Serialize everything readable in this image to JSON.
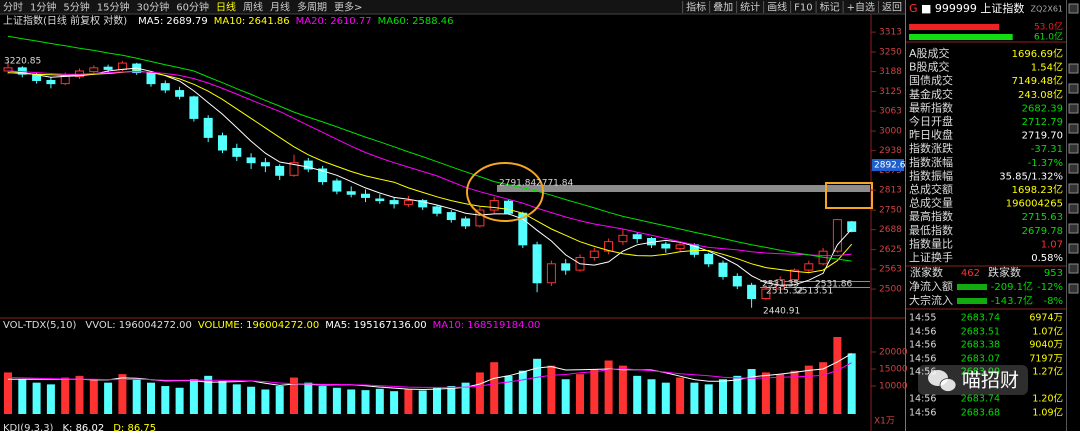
{
  "toolbar": {
    "left": [
      {
        "label": "分时"
      },
      {
        "label": "1分钟"
      },
      {
        "label": "5分钟"
      },
      {
        "label": "15分钟"
      },
      {
        "label": "30分钟"
      },
      {
        "label": "60分钟"
      },
      {
        "label": "日线",
        "selected": true
      },
      {
        "label": "周线"
      },
      {
        "label": "月线"
      },
      {
        "label": "多周期"
      },
      {
        "label": "更多>"
      }
    ],
    "right": [
      "指标",
      "叠加",
      "统计",
      "画线",
      "F10",
      "标记",
      "+自选",
      "返回"
    ]
  },
  "chart_data": [
    {
      "type": "candlestick",
      "title": "上证指数(日线 前复权 对数)",
      "legend": [
        {
          "label": "MA5:",
          "value": "2689.79",
          "color": "#ffffff"
        },
        {
          "label": "MA10:",
          "value": "2641.86",
          "color": "#ffff00"
        },
        {
          "label": "MA20:",
          "value": "2610.77",
          "color": "#ff00ff"
        },
        {
          "label": "MA60:",
          "value": "2588.46",
          "color": "#00e000"
        }
      ],
      "up_color": "#ff3232",
      "down_color": "#54ffff",
      "candles": [
        [
          3190,
          3220.85,
          3180,
          3200
        ],
        [
          3200,
          3205,
          3170,
          3180
        ],
        [
          3178,
          3185,
          3150,
          3160
        ],
        [
          3160,
          3170,
          3135,
          3150
        ],
        [
          3150,
          3185,
          3145,
          3175
        ],
        [
          3172,
          3198,
          3165,
          3190
        ],
        [
          3188,
          3208,
          3180,
          3200
        ],
        [
          3202,
          3210,
          3185,
          3195
        ],
        [
          3195,
          3222,
          3190,
          3215
        ],
        [
          3212,
          3216,
          3178,
          3185
        ],
        [
          3185,
          3190,
          3140,
          3150
        ],
        [
          3150,
          3160,
          3120,
          3130
        ],
        [
          3128,
          3140,
          3100,
          3110
        ],
        [
          3108,
          3112,
          3030,
          3040
        ],
        [
          3040,
          3050,
          2965,
          2980
        ],
        [
          2985,
          2995,
          2930,
          2940
        ],
        [
          2945,
          2960,
          2905,
          2920
        ],
        [
          2915,
          2930,
          2880,
          2900
        ],
        [
          2900,
          2915,
          2870,
          2890
        ],
        [
          2888,
          2895,
          2845,
          2860
        ],
        [
          2860,
          2925,
          2855,
          2900
        ],
        [
          2905,
          2915,
          2870,
          2880
        ],
        [
          2880,
          2890,
          2830,
          2840
        ],
        [
          2842,
          2850,
          2800,
          2810
        ],
        [
          2808,
          2825,
          2790,
          2800
        ],
        [
          2800,
          2815,
          2775,
          2790
        ],
        [
          2785,
          2800,
          2770,
          2780
        ],
        [
          2780,
          2790,
          2755,
          2770
        ],
        [
          2768,
          2795,
          2760,
          2780
        ],
        [
          2780,
          2785,
          2750,
          2760
        ],
        [
          2760,
          2765,
          2730,
          2740
        ],
        [
          2742,
          2750,
          2710,
          2720
        ],
        [
          2722,
          2730,
          2690,
          2700
        ],
        [
          2700,
          2760,
          2695,
          2750
        ],
        [
          2750,
          2791.84,
          2740,
          2780
        ],
        [
          2778,
          2785,
          2735,
          2740
        ],
        [
          2740,
          2745,
          2630,
          2640
        ],
        [
          2640,
          2650,
          2490,
          2520
        ],
        [
          2520,
          2590,
          2510,
          2580
        ],
        [
          2580,
          2595,
          2545,
          2560
        ],
        [
          2560,
          2610,
          2555,
          2600
        ],
        [
          2600,
          2630,
          2590,
          2620
        ],
        [
          2620,
          2660,
          2610,
          2650
        ],
        [
          2650,
          2690,
          2640,
          2670
        ],
        [
          2672,
          2680,
          2645,
          2660
        ],
        [
          2660,
          2665,
          2630,
          2640
        ],
        [
          2642,
          2650,
          2615,
          2630
        ],
        [
          2628,
          2650,
          2620,
          2640
        ],
        [
          2640,
          2645,
          2600,
          2610
        ],
        [
          2610,
          2615,
          2570,
          2580
        ],
        [
          2582,
          2590,
          2530,
          2540
        ],
        [
          2540,
          2550,
          2500,
          2510
        ],
        [
          2512,
          2520,
          2440.91,
          2470
        ],
        [
          2470,
          2510,
          2465,
          2500
        ],
        [
          2500,
          2540,
          2495,
          2530
        ],
        [
          2530,
          2565,
          2525,
          2560
        ],
        [
          2560,
          2590,
          2550,
          2580
        ],
        [
          2580,
          2630,
          2575,
          2620
        ],
        [
          2620,
          2722,
          2615,
          2719.7
        ],
        [
          2712.79,
          2715.63,
          2679.78,
          2682.39
        ]
      ],
      "series": [
        {
          "color": "#ffffff",
          "values": [
            3190,
            3185,
            3178,
            3170,
            3173,
            3175,
            3180,
            3190,
            3195,
            3199,
            3189,
            3175,
            3158,
            3127,
            3090,
            3053,
            3011,
            2968,
            2930,
            2902,
            2894,
            2886,
            2874,
            2860,
            2840,
            2820,
            2804,
            2790,
            2784,
            2776,
            2766,
            2754,
            2740,
            2734,
            2738,
            2738,
            2722,
            2686,
            2652,
            2608,
            2580,
            2576,
            2586,
            2620,
            2640,
            2648,
            2654,
            2648,
            2636,
            2620,
            2600,
            2576,
            2542,
            2520,
            2512,
            2514,
            2528,
            2550,
            2640,
            2689.79
          ]
        },
        {
          "color": "#ffff00",
          "values": [
            3185,
            3182,
            3180,
            3178,
            3176,
            3178,
            3180,
            3182,
            3186,
            3190,
            3185,
            3176,
            3165,
            3148,
            3126,
            3100,
            3070,
            3040,
            3010,
            2980,
            2950,
            2925,
            2905,
            2888,
            2872,
            2858,
            2848,
            2838,
            2820,
            2806,
            2792,
            2780,
            2770,
            2762,
            2758,
            2752,
            2740,
            2715,
            2690,
            2670,
            2650,
            2635,
            2622,
            2612,
            2606,
            2605,
            2610,
            2618,
            2622,
            2622,
            2610,
            2596,
            2580,
            2568,
            2562,
            2556,
            2552,
            2560,
            2590,
            2641.86
          ]
        },
        {
          "color": "#ff00ff",
          "values": [
            3190,
            3188,
            3185,
            3182,
            3180,
            3180,
            3182,
            3185,
            3187,
            3188,
            3186,
            3182,
            3176,
            3166,
            3152,
            3135,
            3117,
            3098,
            3080,
            3062,
            3040,
            3018,
            2996,
            2974,
            2952,
            2932,
            2915,
            2900,
            2886,
            2872,
            2858,
            2840,
            2822,
            2808,
            2796,
            2784,
            2772,
            2756,
            2742,
            2728,
            2716,
            2706,
            2698,
            2690,
            2680,
            2670,
            2660,
            2650,
            2640,
            2632,
            2628,
            2624,
            2618,
            2614,
            2612,
            2610,
            2608,
            2606,
            2606,
            2610.77
          ]
        },
        {
          "color": "#00e000",
          "values": [
            3300,
            3292,
            3285,
            3277,
            3270,
            3262,
            3255,
            3247,
            3240,
            3230,
            3220,
            3210,
            3200,
            3190,
            3171,
            3153,
            3134,
            3116,
            3097,
            3079,
            3060,
            3044,
            3029,
            3013,
            2997,
            2981,
            2966,
            2950,
            2934,
            2919,
            2903,
            2887,
            2871,
            2856,
            2840,
            2830,
            2820,
            2810,
            2797,
            2783,
            2770,
            2757,
            2743,
            2730,
            2720,
            2710,
            2700,
            2690,
            2680,
            2670,
            2660,
            2650,
            2640,
            2632,
            2623,
            2615,
            2608,
            2601,
            2595,
            2588.46
          ]
        }
      ],
      "ylim": [
        2418,
        3345
      ],
      "yticks": [
        3313,
        3250,
        3188,
        3125,
        3063,
        3000,
        2938,
        2875,
        2813,
        2750,
        2688,
        2625,
        2563,
        2500
      ],
      "price_tag": 2892.6,
      "annotations": [
        "3220.85",
        "2791.84",
        "2771.84",
        "2531.35",
        "2531.86",
        "2515.32",
        "2513.51",
        "2440.91"
      ]
    },
    {
      "type": "bar",
      "legend": [
        {
          "label": "VOL-TDX(5,10)",
          "color": "#dddddd"
        },
        {
          "label": "VVOL:",
          "value": "196004272.00",
          "color": "#dddddd"
        },
        {
          "label": "VOLUME:",
          "value": "196004272.00",
          "color": "#ffff00"
        },
        {
          "label": "MA5:",
          "value": "195167136.00",
          "color": "#ffffff"
        },
        {
          "label": "MA10:",
          "value": "168519184.00",
          "color": "#ff00ff"
        }
      ],
      "values": [
        14000,
        12000,
        11000,
        10500,
        12500,
        13000,
        12000,
        11000,
        13500,
        12000,
        11000,
        10000,
        9500,
        12000,
        13000,
        11500,
        10500,
        9800,
        9000,
        10000,
        12500,
        11000,
        10000,
        9500,
        9000,
        8800,
        9200,
        8500,
        9000,
        8700,
        9500,
        10000,
        11000,
        14000,
        17000,
        13000,
        14500,
        18000,
        16000,
        12000,
        13500,
        15000,
        17500,
        16000,
        13000,
        12000,
        11000,
        12500,
        11000,
        10500,
        12000,
        13000,
        15000,
        14000,
        13500,
        14500,
        16000,
        17000,
        24400,
        19600
      ],
      "series": [
        {
          "color": "#ffffff",
          "values": [
            12000,
            12000,
            12000,
            12000,
            12000,
            12000,
            11800,
            11800,
            12400,
            12300,
            11900,
            11500,
            11600,
            11600,
            11100,
            11200,
            11300,
            11500,
            10800,
            10200,
            10600,
            10500,
            10300,
            10400,
            10400,
            10100,
            9700,
            9400,
            9100,
            9000,
            9100,
            9300,
            9600,
            10600,
            12300,
            13000,
            14100,
            15300,
            15700,
            14700,
            14800,
            14900,
            15000,
            14800,
            14800,
            14700,
            13900,
            12900,
            11900,
            11400,
            11400,
            11800,
            12700,
            13100,
            13500,
            14000,
            14600,
            15000,
            17100,
            19516.7136
          ]
        },
        {
          "color": "#ff00ff",
          "values": [
            12500,
            12400,
            12300,
            12200,
            12100,
            12000,
            12000,
            11900,
            11900,
            12000,
            11900,
            11700,
            11700,
            11700,
            11700,
            11700,
            11600,
            11500,
            11300,
            10900,
            10700,
            10600,
            10500,
            10500,
            10400,
            10300,
            10100,
            9900,
            9700,
            9600,
            9600,
            9600,
            9700,
            10000,
            10700,
            11200,
            11800,
            12600,
            13200,
            13400,
            13900,
            14200,
            14800,
            15100,
            14800,
            14500,
            14100,
            13600,
            13300,
            13000,
            12600,
            12400,
            12300,
            12400,
            12600,
            12700,
            12900,
            13200,
            14600,
            16851.9184
          ]
        }
      ],
      "ylim": [
        1800,
        28800
      ],
      "yticks": [
        10000,
        15000,
        20000
      ],
      "unit_label": "X1万"
    }
  ],
  "kdj_header": [
    {
      "label": "KDJ(9,3,3)",
      "color": "#dddddd"
    },
    {
      "label": "K: 86.02",
      "color": "#ffffff"
    },
    {
      "label": "D: 86.75",
      "color": "#ffff00"
    }
  ],
  "quote_panel": {
    "code_prefix": "G",
    "title": "■ 999999 上证指数",
    "tag": "ZQ2X61",
    "flow_bars": {
      "values": [
        53.0,
        61.0
      ],
      "value_labels": [
        "53.0亿",
        "61.0亿"
      ],
      "colors": [
        "#ee2222",
        "#11dd11"
      ]
    },
    "rows": [
      {
        "label": "A股成交",
        "value": "1696.69亿",
        "color": "#ffff00"
      },
      {
        "label": "B股成交",
        "value": "1.54亿",
        "color": "#ffff00"
      },
      {
        "label": "国债成交",
        "value": "7149.48亿",
        "color": "#ffff00"
      },
      {
        "label": "基金成交",
        "value": "243.08亿",
        "color": "#ffff00"
      },
      {
        "label": "最新指数",
        "value": "2682.39",
        "color": "#00dd00"
      },
      {
        "label": "今日开盘",
        "value": "2712.79",
        "color": "#00dd00"
      },
      {
        "label": "昨日收盘",
        "value": "2719.70",
        "color": "#ffffff"
      },
      {
        "label": "指数涨跌",
        "value": "-37.31",
        "color": "#00dd00"
      },
      {
        "label": "指数涨幅",
        "value": "-1.37%",
        "color": "#00dd00"
      },
      {
        "label": "指数振幅",
        "value": "35.85/1.32%",
        "color": "#ffffff"
      },
      {
        "label": "总成交额",
        "value": "1698.23亿",
        "color": "#ffff00"
      },
      {
        "label": "总成交量",
        "value": "196004265",
        "color": "#ffff00"
      },
      {
        "label": "最高指数",
        "value": "2715.63",
        "color": "#00dd00"
      },
      {
        "label": "最低指数",
        "value": "2679.78",
        "color": "#00dd00"
      },
      {
        "label": "指数量比",
        "value": "1.07",
        "color": "#ff3232"
      },
      {
        "label": "上证换手",
        "value": "0.58%",
        "color": "#ffffff"
      }
    ],
    "breadth": {
      "up_label": "涨家数",
      "up": "462",
      "down_label": "跌家数",
      "down": "953"
    },
    "flows": [
      {
        "label": "净流入额",
        "value": "-209.1亿",
        "pct": "-12%"
      },
      {
        "label": "大宗流入",
        "value": "-143.7亿",
        "pct": "-8%"
      }
    ],
    "ticks": [
      [
        "14:55",
        "2683.74",
        "6974万"
      ],
      [
        "14:56",
        "2683.51",
        "1.07亿"
      ],
      [
        "14:56",
        "2683.38",
        "9040万"
      ],
      [
        "14:56",
        "2683.07",
        "7197万"
      ],
      [
        "14:56",
        "2683.00",
        "1.27亿"
      ],
      [
        "14:56",
        "2683.74",
        "1.20亿"
      ],
      [
        "14:56",
        "2683.68",
        "1.09亿"
      ]
    ]
  },
  "watermark": "喵招财"
}
